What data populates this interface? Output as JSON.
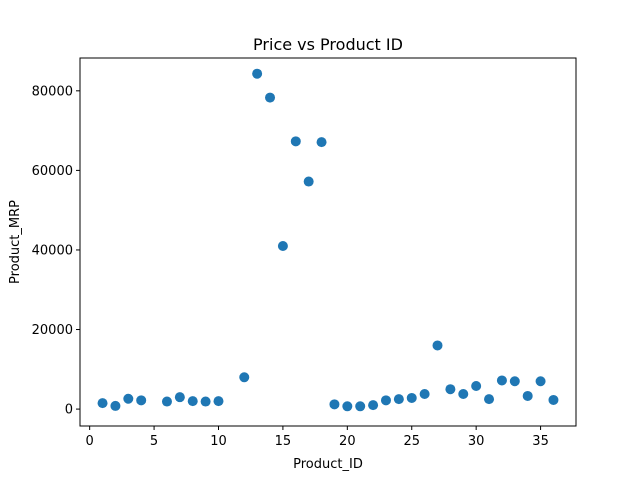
{
  "chart_data": {
    "type": "scatter",
    "title": "Price vs Product ID",
    "xlabel": "Product_ID",
    "ylabel": "Product_MRP",
    "xlim": [
      -0.75,
      37.75
    ],
    "ylim": [
      -4250,
      88250
    ],
    "xticks": [
      0,
      5,
      10,
      15,
      20,
      25,
      30,
      35
    ],
    "yticks": [
      0,
      20000,
      40000,
      60000,
      80000
    ],
    "xtick_labels": [
      "0",
      "5",
      "10",
      "15",
      "20",
      "25",
      "30",
      "35"
    ],
    "ytick_labels": [
      "0",
      "20000",
      "40000",
      "60000",
      "80000"
    ],
    "grid": false,
    "color": "#1f77b4",
    "points": [
      {
        "x": 1,
        "y": 1500
      },
      {
        "x": 2,
        "y": 800
      },
      {
        "x": 3,
        "y": 2600
      },
      {
        "x": 4,
        "y": 2200
      },
      {
        "x": 6,
        "y": 1900
      },
      {
        "x": 7,
        "y": 3000
      },
      {
        "x": 8,
        "y": 2000
      },
      {
        "x": 9,
        "y": 1900
      },
      {
        "x": 10,
        "y": 2000
      },
      {
        "x": 12,
        "y": 8000
      },
      {
        "x": 13,
        "y": 84300
      },
      {
        "x": 14,
        "y": 78300
      },
      {
        "x": 15,
        "y": 41000
      },
      {
        "x": 16,
        "y": 67300
      },
      {
        "x": 17,
        "y": 57200
      },
      {
        "x": 18,
        "y": 67100
      },
      {
        "x": 19,
        "y": 1200
      },
      {
        "x": 20,
        "y": 700
      },
      {
        "x": 21,
        "y": 700
      },
      {
        "x": 22,
        "y": 1000
      },
      {
        "x": 23,
        "y": 2200
      },
      {
        "x": 24,
        "y": 2500
      },
      {
        "x": 25,
        "y": 2800
      },
      {
        "x": 26,
        "y": 3800
      },
      {
        "x": 27,
        "y": 16000
      },
      {
        "x": 28,
        "y": 5000
      },
      {
        "x": 29,
        "y": 3800
      },
      {
        "x": 30,
        "y": 5800
      },
      {
        "x": 31,
        "y": 2500
      },
      {
        "x": 32,
        "y": 7200
      },
      {
        "x": 33,
        "y": 7000
      },
      {
        "x": 34,
        "y": 3300
      },
      {
        "x": 35,
        "y": 7000
      },
      {
        "x": 36,
        "y": 2300
      }
    ]
  }
}
